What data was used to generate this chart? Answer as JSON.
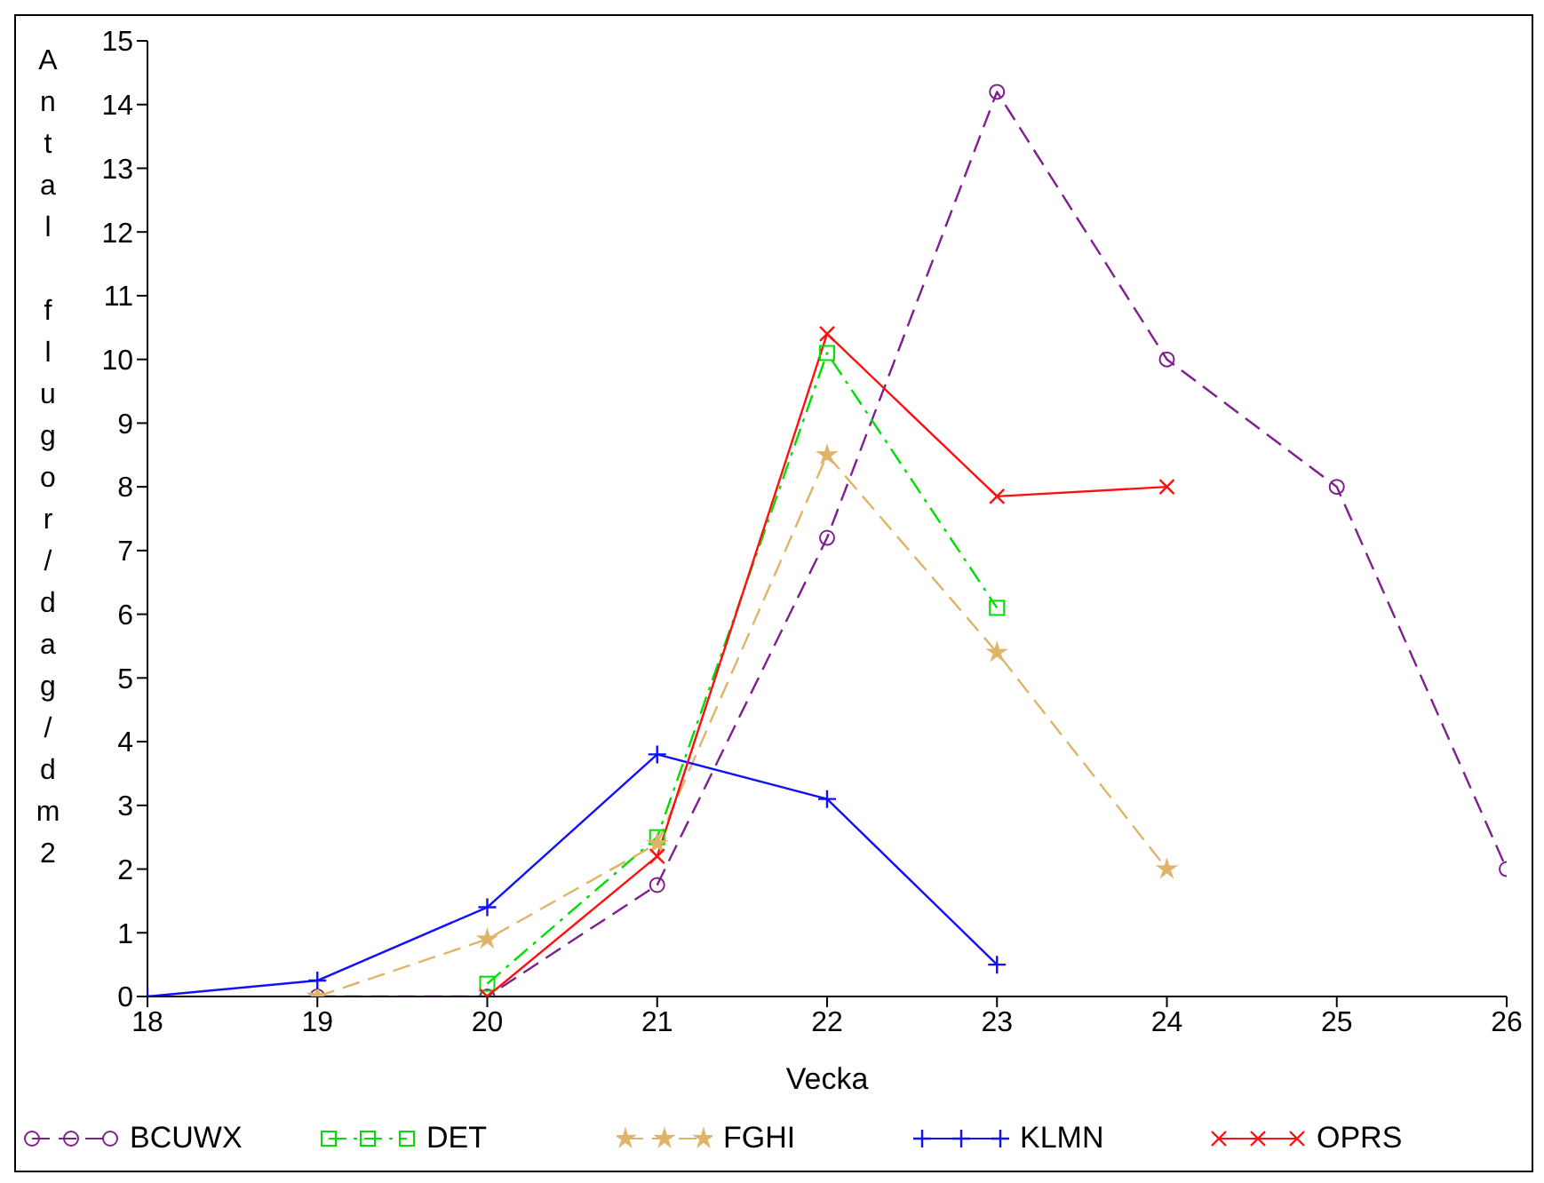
{
  "chart_data": {
    "type": "line",
    "xlabel": "Vecka",
    "ylabel": "Antal flugor/dag/dm2",
    "xlim": [
      18,
      26
    ],
    "xticks": [
      18,
      19,
      20,
      21,
      22,
      23,
      24,
      25,
      26
    ],
    "ylim": [
      0,
      15
    ],
    "yticks": [
      0,
      1,
      2,
      3,
      4,
      5,
      6,
      7,
      8,
      9,
      10,
      11,
      12,
      13,
      14,
      15
    ],
    "legend": "bottom",
    "grid": false,
    "series": [
      {
        "name": "BCUWX",
        "color": "#7f1f8f",
        "marker": "circle",
        "line_style": "dashed",
        "x": [
          19,
          20,
          21,
          22,
          23,
          24,
          25,
          26
        ],
        "values": [
          0,
          0,
          1.75,
          7.2,
          14.2,
          10,
          8,
          2
        ]
      },
      {
        "name": "DET",
        "color": "#00e000",
        "marker": "square",
        "line_style": "dashdot",
        "x": [
          20,
          21,
          22,
          23
        ],
        "values": [
          0.2,
          2.5,
          10.1,
          6.1
        ]
      },
      {
        "name": "FGHI",
        "color": "#e0b468",
        "marker": "star",
        "line_style": "dashed",
        "x": [
          19,
          20,
          21,
          22,
          23,
          24
        ],
        "values": [
          0,
          0.9,
          2.4,
          8.5,
          5.4,
          2
        ]
      },
      {
        "name": "KLMN",
        "color": "#1010ff",
        "marker": "cross",
        "line_style": "solid",
        "x": [
          18,
          19,
          20,
          21,
          22,
          23
        ],
        "values": [
          0,
          0.25,
          1.4,
          3.8,
          3.1,
          0.5
        ]
      },
      {
        "name": "OPRS",
        "color": "#ff1010",
        "marker": "x",
        "line_style": "solid",
        "x": [
          20,
          21,
          22,
          23,
          24
        ],
        "values": [
          0,
          2.2,
          10.4,
          7.85,
          8
        ]
      }
    ]
  }
}
